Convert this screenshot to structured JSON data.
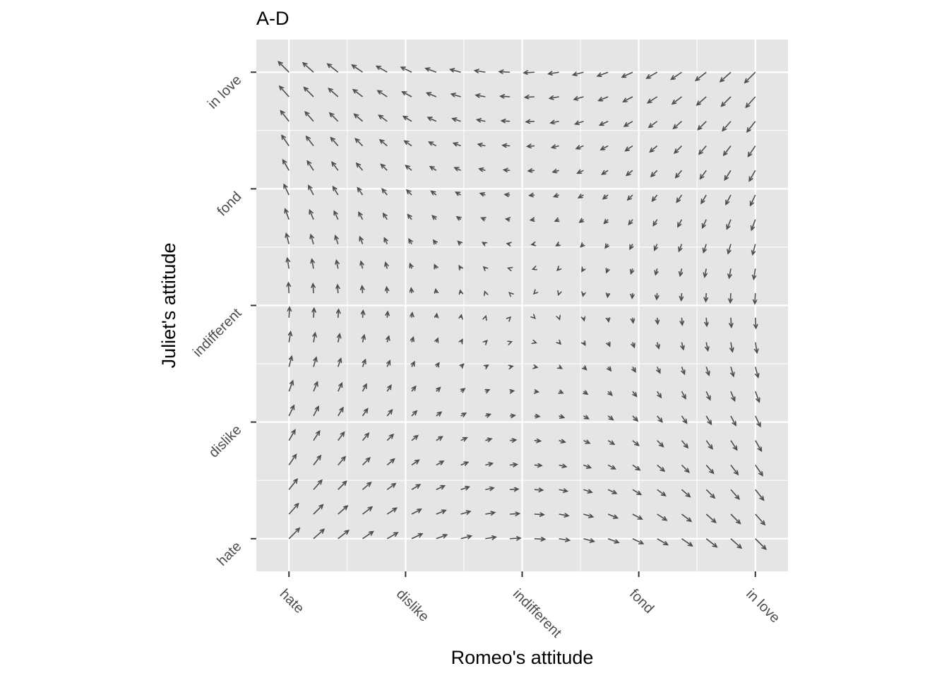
{
  "chart_data": {
    "type": "vector-field",
    "title": "A-D",
    "xlabel": "Romeo's attitude",
    "ylabel": "Juliet's attitude",
    "x_tick_labels": [
      "hate",
      "dislike",
      "indifferent",
      "fond",
      "in love"
    ],
    "y_tick_labels": [
      "hate",
      "dislike",
      "indifferent",
      "fond",
      "in love"
    ],
    "x_tick_values": [
      -2,
      -1,
      0,
      1,
      2
    ],
    "y_tick_values": [
      -2,
      -1,
      0,
      1,
      2
    ],
    "xlim": [
      -2.28,
      2.28
    ],
    "ylim": [
      -2.28,
      2.28
    ],
    "grid": true,
    "grid_range": [
      -2,
      2
    ],
    "grid_points": 20,
    "field": {
      "dx_coef_x": 0,
      "dx_coef_y": -1,
      "dy_coef_x": -1,
      "dy_coef_y": 0
    },
    "arrow_scale": 0.045,
    "colors": {
      "panel": "#e5e5e5",
      "gridline": "#ffffff",
      "arrow": "#4d4d4d",
      "tick": "#333333",
      "tick_label": "#4d4d4d"
    }
  }
}
